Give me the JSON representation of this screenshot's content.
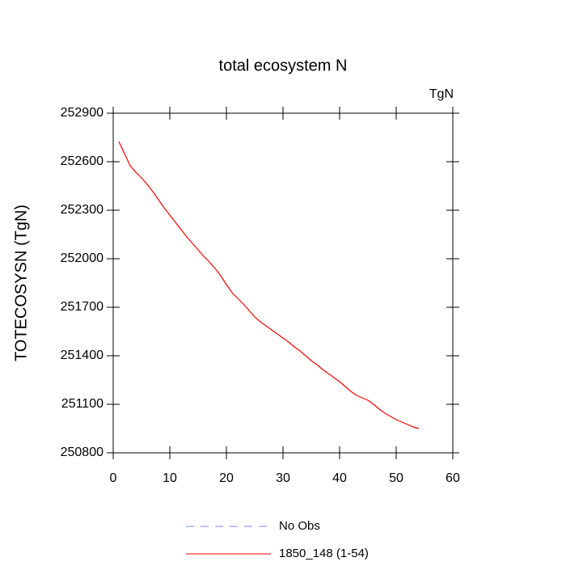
{
  "chart_data": {
    "type": "line",
    "title": "total ecosystem N",
    "units": "TgN",
    "y_label": "TOTECOSYSN  (TgN)",
    "x": [
      1,
      2,
      3,
      4,
      5,
      6,
      7,
      8,
      9,
      10,
      11,
      12,
      13,
      14,
      15,
      16,
      17,
      18,
      19,
      20,
      21,
      22,
      23,
      24,
      25,
      26,
      27,
      28,
      29,
      30,
      31,
      32,
      33,
      34,
      35,
      36,
      37,
      38,
      39,
      40,
      41,
      42,
      43,
      44,
      45,
      46,
      47,
      48,
      49,
      50,
      51,
      52,
      53,
      54
    ],
    "series": [
      {
        "name": "No Obs",
        "color": "#8080ff",
        "dashed": true,
        "values": [
          null,
          null,
          null,
          null,
          null,
          null,
          null,
          null,
          null,
          null,
          null,
          null,
          null,
          null,
          null,
          null,
          null,
          null,
          null,
          null,
          null,
          null,
          null,
          null,
          null,
          null,
          null,
          null,
          null,
          null,
          null,
          null,
          null,
          null,
          null,
          null,
          null,
          null,
          null,
          null,
          null,
          null,
          null,
          null,
          null,
          null,
          null,
          null,
          null,
          null,
          null,
          null,
          null,
          null
        ]
      },
      {
        "name": "1850_148 (1-54)",
        "color": "#ff0000",
        "dashed": false,
        "values": [
          252725,
          252650,
          252575,
          252535,
          252500,
          252460,
          252415,
          252365,
          252315,
          252270,
          252225,
          252180,
          252135,
          252095,
          252055,
          252015,
          251980,
          251940,
          251895,
          251840,
          251790,
          251755,
          251720,
          251680,
          251640,
          251610,
          251585,
          251560,
          251535,
          251510,
          251485,
          251455,
          251430,
          251400,
          251370,
          251345,
          251315,
          251290,
          251265,
          251240,
          251210,
          251180,
          251155,
          251140,
          251125,
          251100,
          251070,
          251045,
          251025,
          251005,
          250990,
          250975,
          250960,
          250950
        ]
      }
    ],
    "xlim": [
      0,
      60
    ],
    "xticks": [
      0,
      10,
      20,
      30,
      40,
      50,
      60
    ],
    "ylim": [
      250800,
      252900
    ],
    "yticks": [
      250800,
      251100,
      251400,
      251700,
      252000,
      252300,
      252600,
      252900
    ]
  }
}
